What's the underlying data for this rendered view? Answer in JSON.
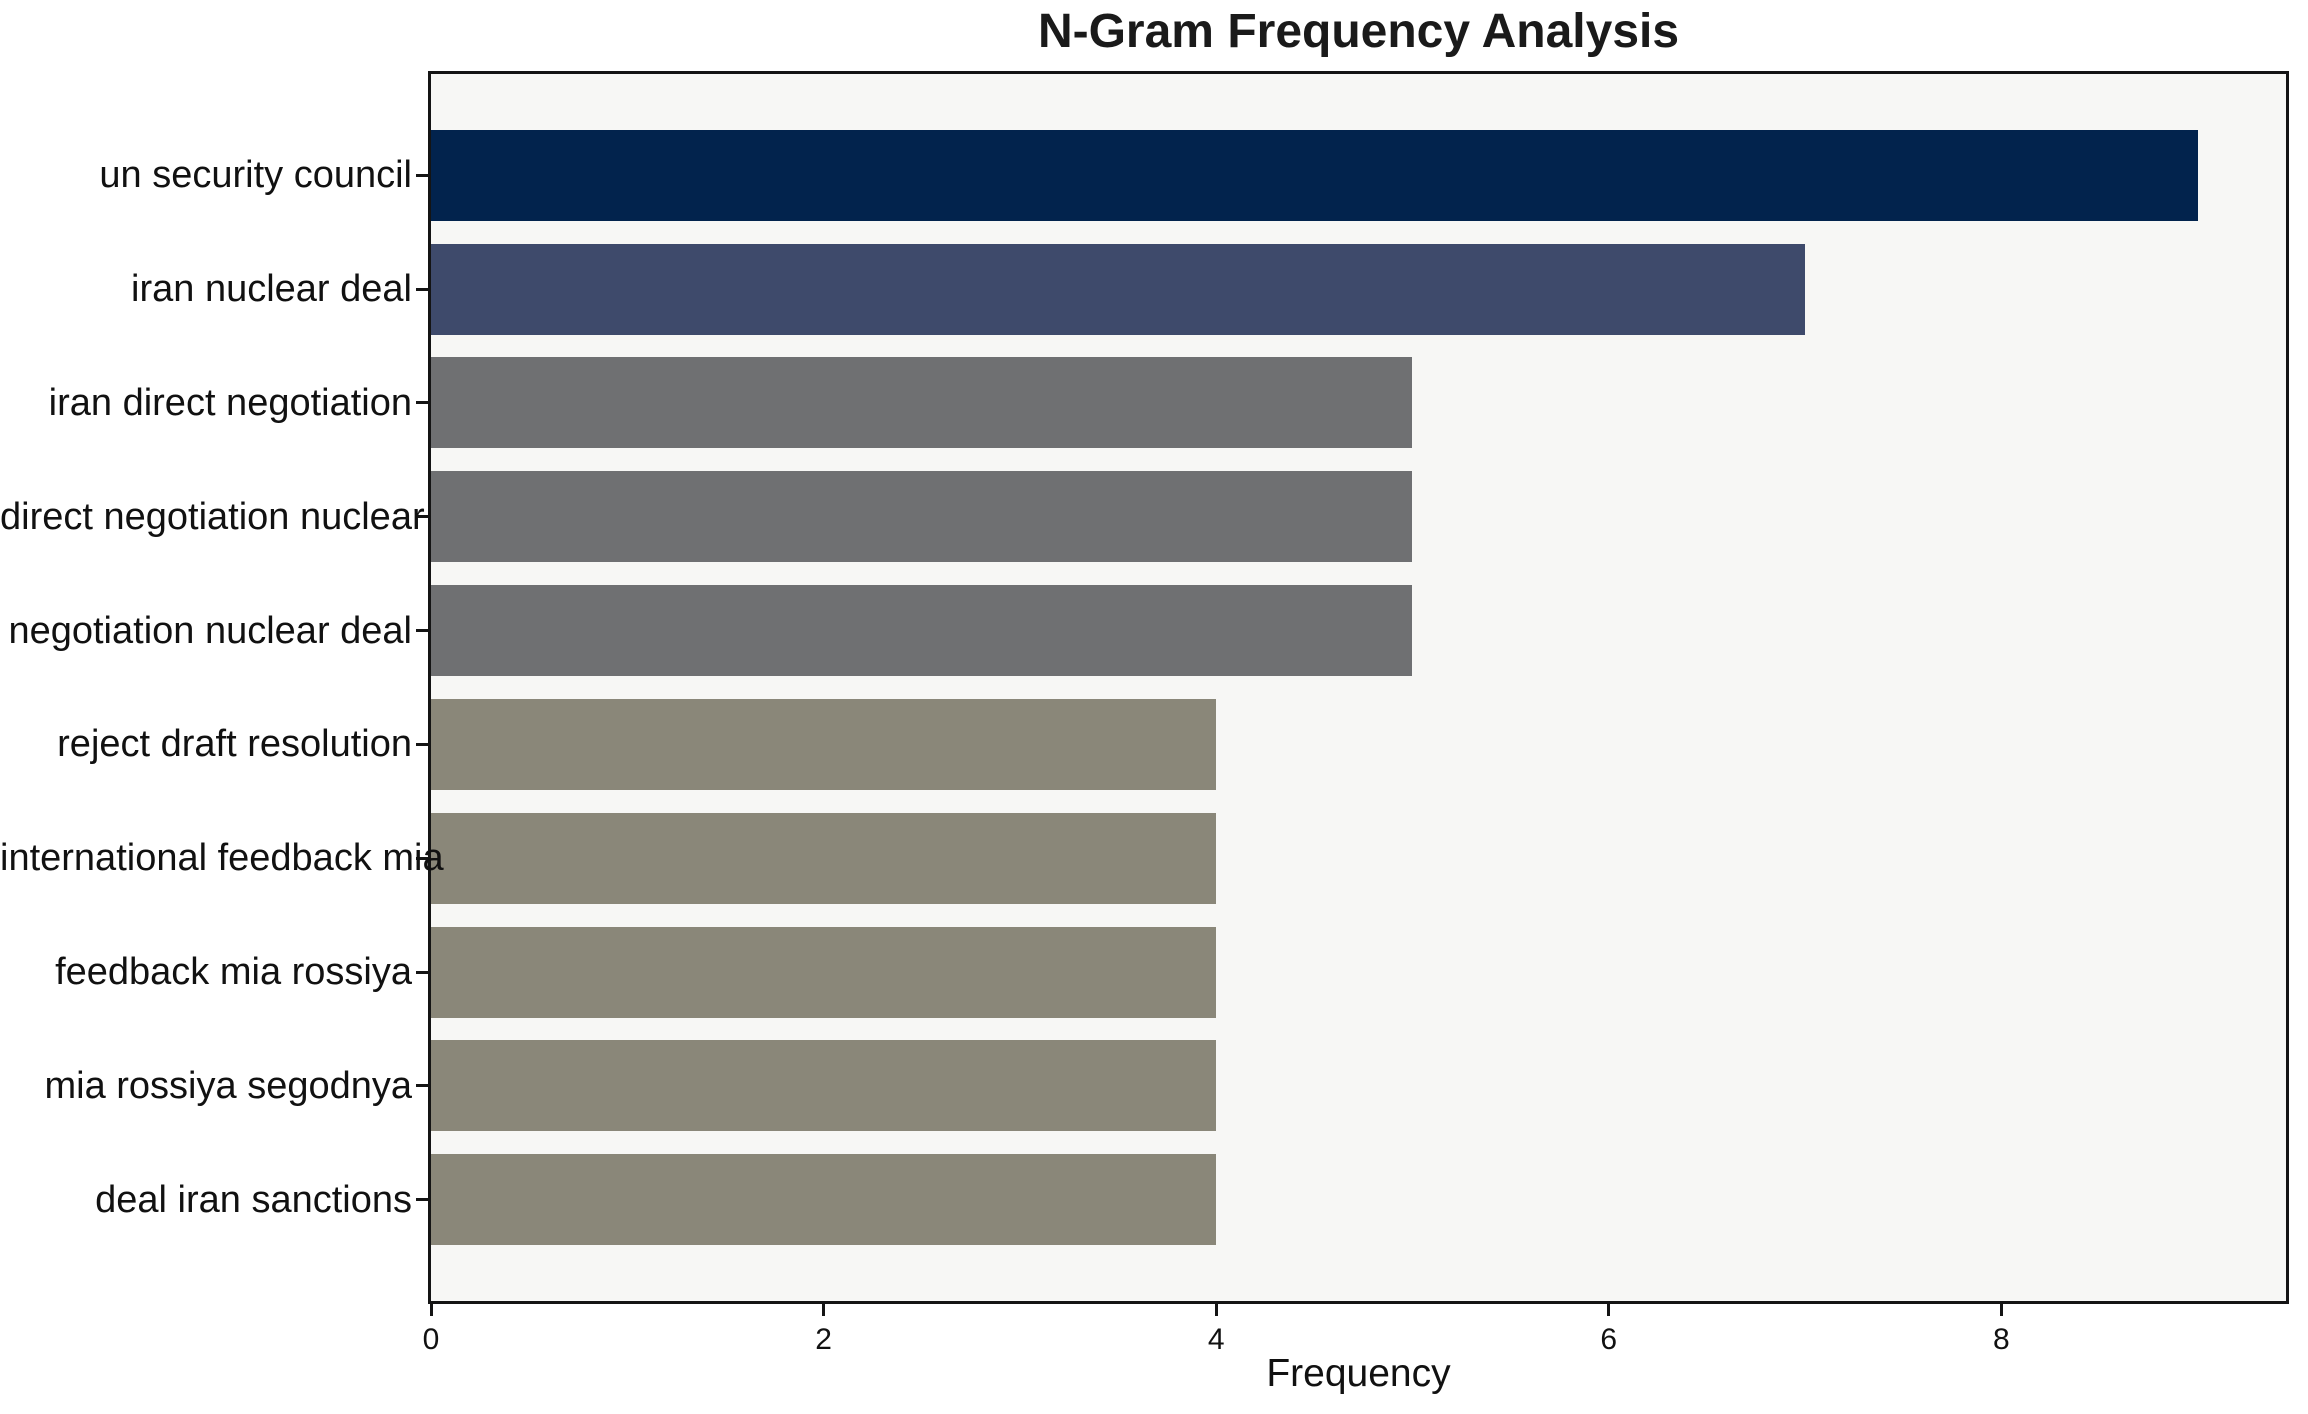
{
  "chart_data": {
    "type": "bar",
    "orientation": "horizontal",
    "title": "N-Gram Frequency Analysis",
    "xlabel": "Frequency",
    "ylabel": "",
    "categories": [
      "un security council",
      "iran nuclear deal",
      "iran direct negotiation",
      "direct negotiation nuclear",
      "negotiation nuclear deal",
      "reject draft resolution",
      "international feedback mia",
      "feedback mia rossiya",
      "mia rossiya segodnya",
      "deal iran sanctions"
    ],
    "values": [
      9,
      7,
      5,
      5,
      5,
      4,
      4,
      4,
      4,
      4
    ],
    "bar_colors": [
      "#02234d",
      "#3e4a6b",
      "#6f7072",
      "#6f7072",
      "#6f7072",
      "#8a8779",
      "#8a8779",
      "#8a8779",
      "#8a8779",
      "#8a8779"
    ],
    "x_ticks": [
      0,
      2,
      4,
      6,
      8
    ],
    "xlim": [
      0,
      9.45
    ],
    "bar_width_fraction": 0.8,
    "grid": false,
    "legend": null,
    "plot_background": "#f7f7f5",
    "figure_background": "#ffffff",
    "spine_color": "#141414"
  }
}
